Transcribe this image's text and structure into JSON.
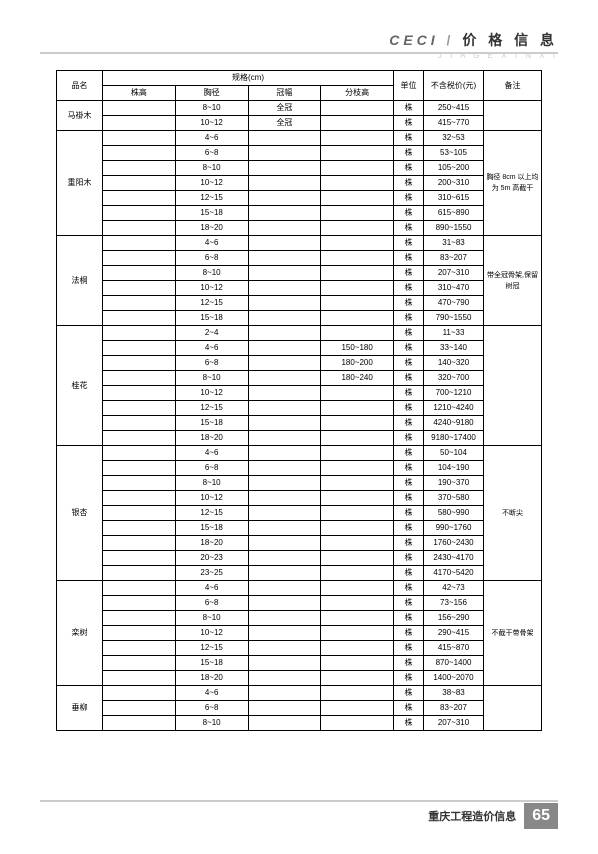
{
  "header": {
    "brand": "CECI",
    "separator": "/",
    "title": "价 格 信 息",
    "subtitle": "J I A G E X I N X I"
  },
  "table": {
    "headers": {
      "name": "品名",
      "spec_group": "规格(cm)",
      "spec1": "株高",
      "spec2": "胸径",
      "spec3": "冠幅",
      "spec4": "分枝高",
      "unit": "单位",
      "price": "不含税价(元)",
      "note": "备注"
    },
    "groups": [
      {
        "name": "马褂木",
        "note": "",
        "rows": [
          {
            "s1": "",
            "s2": "8~10",
            "s3": "全冠",
            "s4": "",
            "unit": "株",
            "price": "250~415"
          },
          {
            "s1": "",
            "s2": "10~12",
            "s3": "全冠",
            "s4": "",
            "unit": "株",
            "price": "415~770"
          }
        ]
      },
      {
        "name": "重阳木",
        "note": "胸径 8cm 以上均为 5m 高截干",
        "rows": [
          {
            "s1": "",
            "s2": "4~6",
            "s3": "",
            "s4": "",
            "unit": "株",
            "price": "32~53"
          },
          {
            "s1": "",
            "s2": "6~8",
            "s3": "",
            "s4": "",
            "unit": "株",
            "price": "53~105"
          },
          {
            "s1": "",
            "s2": "8~10",
            "s3": "",
            "s4": "",
            "unit": "株",
            "price": "105~200"
          },
          {
            "s1": "",
            "s2": "10~12",
            "s3": "",
            "s4": "",
            "unit": "株",
            "price": "200~310"
          },
          {
            "s1": "",
            "s2": "12~15",
            "s3": "",
            "s4": "",
            "unit": "株",
            "price": "310~615"
          },
          {
            "s1": "",
            "s2": "15~18",
            "s3": "",
            "s4": "",
            "unit": "株",
            "price": "615~890"
          },
          {
            "s1": "",
            "s2": "18~20",
            "s3": "",
            "s4": "",
            "unit": "株",
            "price": "890~1550"
          }
        ]
      },
      {
        "name": "法桐",
        "note": "带全冠骨架,保留树冠",
        "rows": [
          {
            "s1": "",
            "s2": "4~6",
            "s3": "",
            "s4": "",
            "unit": "株",
            "price": "31~83"
          },
          {
            "s1": "",
            "s2": "6~8",
            "s3": "",
            "s4": "",
            "unit": "株",
            "price": "83~207"
          },
          {
            "s1": "",
            "s2": "8~10",
            "s3": "",
            "s4": "",
            "unit": "株",
            "price": "207~310"
          },
          {
            "s1": "",
            "s2": "10~12",
            "s3": "",
            "s4": "",
            "unit": "株",
            "price": "310~470"
          },
          {
            "s1": "",
            "s2": "12~15",
            "s3": "",
            "s4": "",
            "unit": "株",
            "price": "470~790"
          },
          {
            "s1": "",
            "s2": "15~18",
            "s3": "",
            "s4": "",
            "unit": "株",
            "price": "790~1550"
          }
        ]
      },
      {
        "name": "桂花",
        "note": "",
        "rows": [
          {
            "s1": "",
            "s2": "2~4",
            "s3": "",
            "s4": "",
            "unit": "株",
            "price": "11~33"
          },
          {
            "s1": "",
            "s2": "4~6",
            "s3": "",
            "s4": "150~180",
            "unit": "株",
            "price": "33~140"
          },
          {
            "s1": "",
            "s2": "6~8",
            "s3": "",
            "s4": "180~200",
            "unit": "株",
            "price": "140~320"
          },
          {
            "s1": "",
            "s2": "8~10",
            "s3": "",
            "s4": "180~240",
            "unit": "株",
            "price": "320~700"
          },
          {
            "s1": "",
            "s2": "10~12",
            "s3": "",
            "s4": "",
            "unit": "株",
            "price": "700~1210"
          },
          {
            "s1": "",
            "s2": "12~15",
            "s3": "",
            "s4": "",
            "unit": "株",
            "price": "1210~4240"
          },
          {
            "s1": "",
            "s2": "15~18",
            "s3": "",
            "s4": "",
            "unit": "株",
            "price": "4240~9180"
          },
          {
            "s1": "",
            "s2": "18~20",
            "s3": "",
            "s4": "",
            "unit": "株",
            "price": "9180~17400"
          }
        ]
      },
      {
        "name": "银杏",
        "note": "不断尖",
        "rows": [
          {
            "s1": "",
            "s2": "4~6",
            "s3": "",
            "s4": "",
            "unit": "株",
            "price": "50~104"
          },
          {
            "s1": "",
            "s2": "6~8",
            "s3": "",
            "s4": "",
            "unit": "株",
            "price": "104~190"
          },
          {
            "s1": "",
            "s2": "8~10",
            "s3": "",
            "s4": "",
            "unit": "株",
            "price": "190~370"
          },
          {
            "s1": "",
            "s2": "10~12",
            "s3": "",
            "s4": "",
            "unit": "株",
            "price": "370~580"
          },
          {
            "s1": "",
            "s2": "12~15",
            "s3": "",
            "s4": "",
            "unit": "株",
            "price": "580~990"
          },
          {
            "s1": "",
            "s2": "15~18",
            "s3": "",
            "s4": "",
            "unit": "株",
            "price": "990~1760"
          },
          {
            "s1": "",
            "s2": "18~20",
            "s3": "",
            "s4": "",
            "unit": "株",
            "price": "1760~2430"
          },
          {
            "s1": "",
            "s2": "20~23",
            "s3": "",
            "s4": "",
            "unit": "株",
            "price": "2430~4170"
          },
          {
            "s1": "",
            "s2": "23~25",
            "s3": "",
            "s4": "",
            "unit": "株",
            "price": "4170~5420"
          }
        ]
      },
      {
        "name": "栾树",
        "note": "不截干带骨架",
        "rows": [
          {
            "s1": "",
            "s2": "4~6",
            "s3": "",
            "s4": "",
            "unit": "株",
            "price": "42~73"
          },
          {
            "s1": "",
            "s2": "6~8",
            "s3": "",
            "s4": "",
            "unit": "株",
            "price": "73~156"
          },
          {
            "s1": "",
            "s2": "8~10",
            "s3": "",
            "s4": "",
            "unit": "株",
            "price": "156~290"
          },
          {
            "s1": "",
            "s2": "10~12",
            "s3": "",
            "s4": "",
            "unit": "株",
            "price": "290~415"
          },
          {
            "s1": "",
            "s2": "12~15",
            "s3": "",
            "s4": "",
            "unit": "株",
            "price": "415~870"
          },
          {
            "s1": "",
            "s2": "15~18",
            "s3": "",
            "s4": "",
            "unit": "株",
            "price": "870~1400"
          },
          {
            "s1": "",
            "s2": "18~20",
            "s3": "",
            "s4": "",
            "unit": "株",
            "price": "1400~2070"
          }
        ]
      },
      {
        "name": "垂柳",
        "note_merge_up": true,
        "rows": [
          {
            "s1": "",
            "s2": "4~6",
            "s3": "",
            "s4": "",
            "unit": "株",
            "price": "38~83"
          },
          {
            "s1": "",
            "s2": "6~8",
            "s3": "",
            "s4": "",
            "unit": "株",
            "price": "83~207"
          },
          {
            "s1": "",
            "s2": "8~10",
            "s3": "",
            "s4": "",
            "unit": "株",
            "price": "207~310"
          }
        ]
      }
    ]
  },
  "footer": {
    "text": "重庆工程造价信息",
    "page": "65"
  }
}
